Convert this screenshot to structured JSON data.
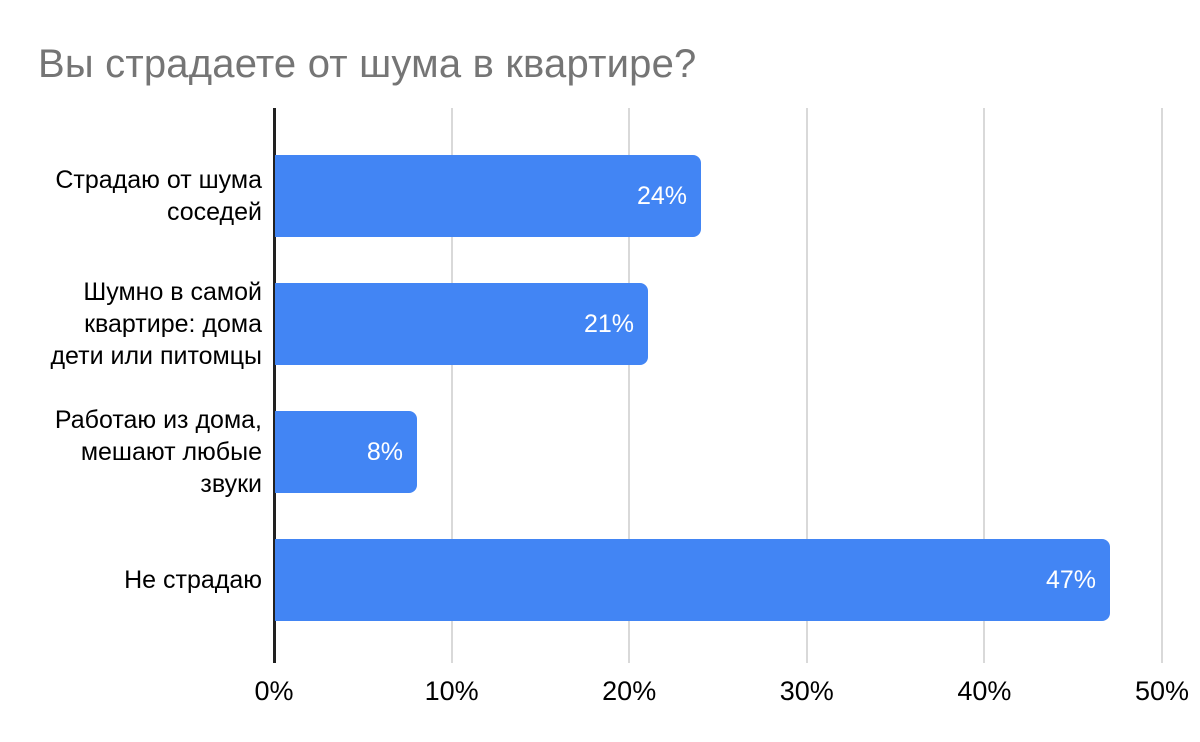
{
  "chart_data": {
    "type": "bar",
    "orientation": "horizontal",
    "title": "Вы страдаете от шума в квартире?",
    "categories": [
      "Страдаю от шума соседей",
      "Шумно в самой квартире: дома дети или питомцы",
      "Работаю из дома, мешают любые звуки",
      "Не страдаю"
    ],
    "category_lines": [
      [
        "Страдаю от шума",
        "соседей"
      ],
      [
        "Шумно в самой",
        "квартире: дома",
        "дети или питомцы"
      ],
      [
        "Работаю из дома,",
        "мешают любые",
        "звуки"
      ],
      [
        "Не страдаю"
      ]
    ],
    "values": [
      24,
      21,
      8,
      47
    ],
    "data_labels": [
      "24%",
      "21%",
      "8%",
      "47%"
    ],
    "x_ticks": [
      {
        "value": 0,
        "label": "0%"
      },
      {
        "value": 10,
        "label": "10%"
      },
      {
        "value": 20,
        "label": "20%"
      },
      {
        "value": 30,
        "label": "30%"
      },
      {
        "value": 40,
        "label": "40%"
      },
      {
        "value": 50,
        "label": "50%"
      }
    ],
    "xlim": [
      0,
      50
    ],
    "grid": true,
    "legend": "none",
    "xlabel": "",
    "ylabel": "",
    "colors": {
      "bar": "#4285f4",
      "title": "#757575",
      "axis_labels": "#000000",
      "data_labels": "#ffffff",
      "gridline": "#d9d9d9",
      "axis_line": "#212121",
      "background": "#ffffff"
    }
  }
}
